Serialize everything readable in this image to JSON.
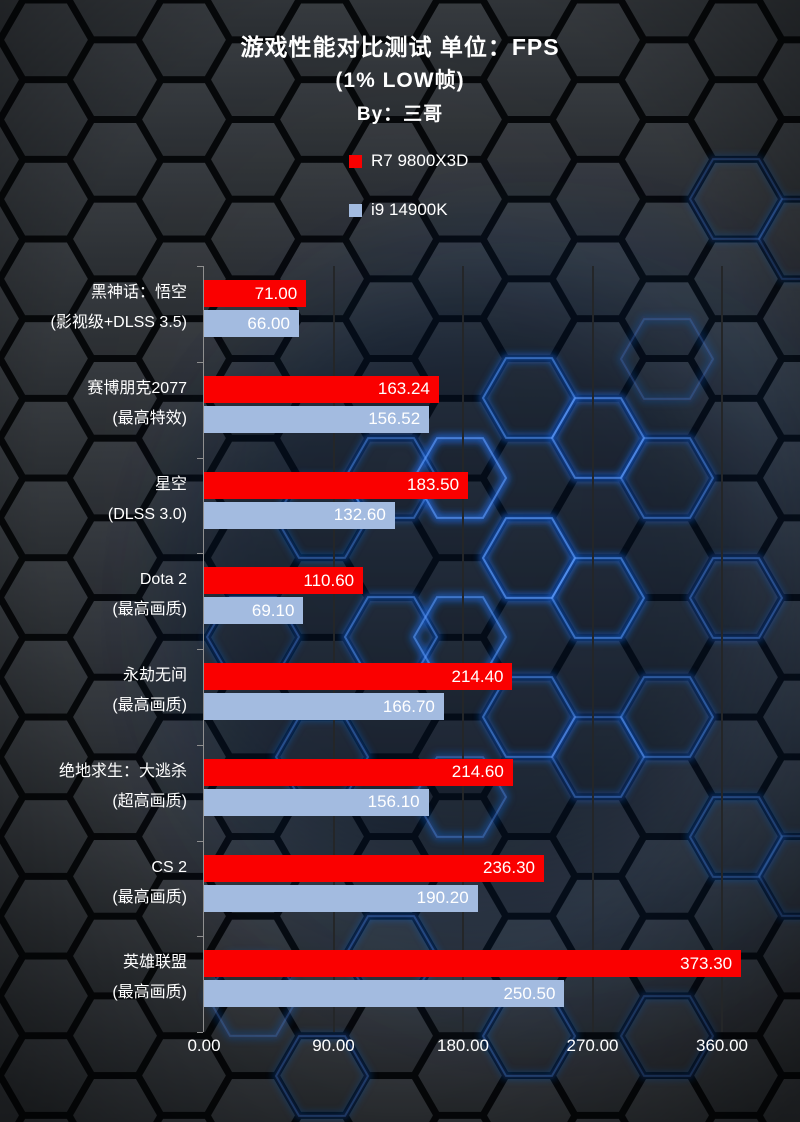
{
  "title": {
    "line1": "游戏性能对比测试 单位：FPS",
    "line2": "(1% LOW帧)",
    "line3": "By：三哥"
  },
  "legend": {
    "items": [
      {
        "label": "R7 9800X3D",
        "color": "#fa0000"
      },
      {
        "label": "i9 14900K",
        "color": "#a3bbe0"
      }
    ]
  },
  "chart_data": {
    "type": "bar",
    "orientation": "horizontal",
    "title": "游戏性能对比测试 单位：FPS (1% LOW帧)",
    "subtitle": "By：三哥",
    "unit": "FPS",
    "grid": true,
    "legend_position": "top",
    "categories": [
      {
        "line1": "黑神话：悟空",
        "line2": "(影视级+DLSS 3.5)"
      },
      {
        "line1": "赛博朋克2077",
        "line2": "(最高特效)"
      },
      {
        "line1": "星空",
        "line2": "(DLSS 3.0)"
      },
      {
        "line1": "Dota 2",
        "line2": "(最高画质)"
      },
      {
        "line1": "永劫无间",
        "line2": "(最高画质)"
      },
      {
        "line1": "绝地求生：大逃杀",
        "line2": "(超高画质)"
      },
      {
        "line1": "CS 2",
        "line2": "(最高画质)"
      },
      {
        "line1": "英雄联盟",
        "line2": "(最高画质)"
      }
    ],
    "series": [
      {
        "name": "R7 9800X3D",
        "color": "#fa0000",
        "values": [
          71.0,
          163.24,
          183.5,
          110.6,
          214.4,
          214.6,
          236.3,
          373.3
        ]
      },
      {
        "name": "i9 14900K",
        "color": "#a3bbe0",
        "values": [
          66.0,
          156.52,
          132.6,
          69.1,
          166.7,
          156.1,
          190.2,
          250.5
        ]
      }
    ],
    "x_axis": {
      "min": 0,
      "max": 360,
      "tick_step": 90,
      "tick_labels": [
        "0.00",
        "90.00",
        "180.00",
        "270.00",
        "360.00"
      ]
    }
  },
  "background": {
    "hex_face_top": "#3a3e43",
    "hex_face_bottom": "#2c3034",
    "gap_color": "#07090b",
    "glow_color": "#1c6ff2",
    "glow_core_color": "#5f9dff",
    "axis_color": "#8f8f8f",
    "gridline_color": "#242628"
  }
}
